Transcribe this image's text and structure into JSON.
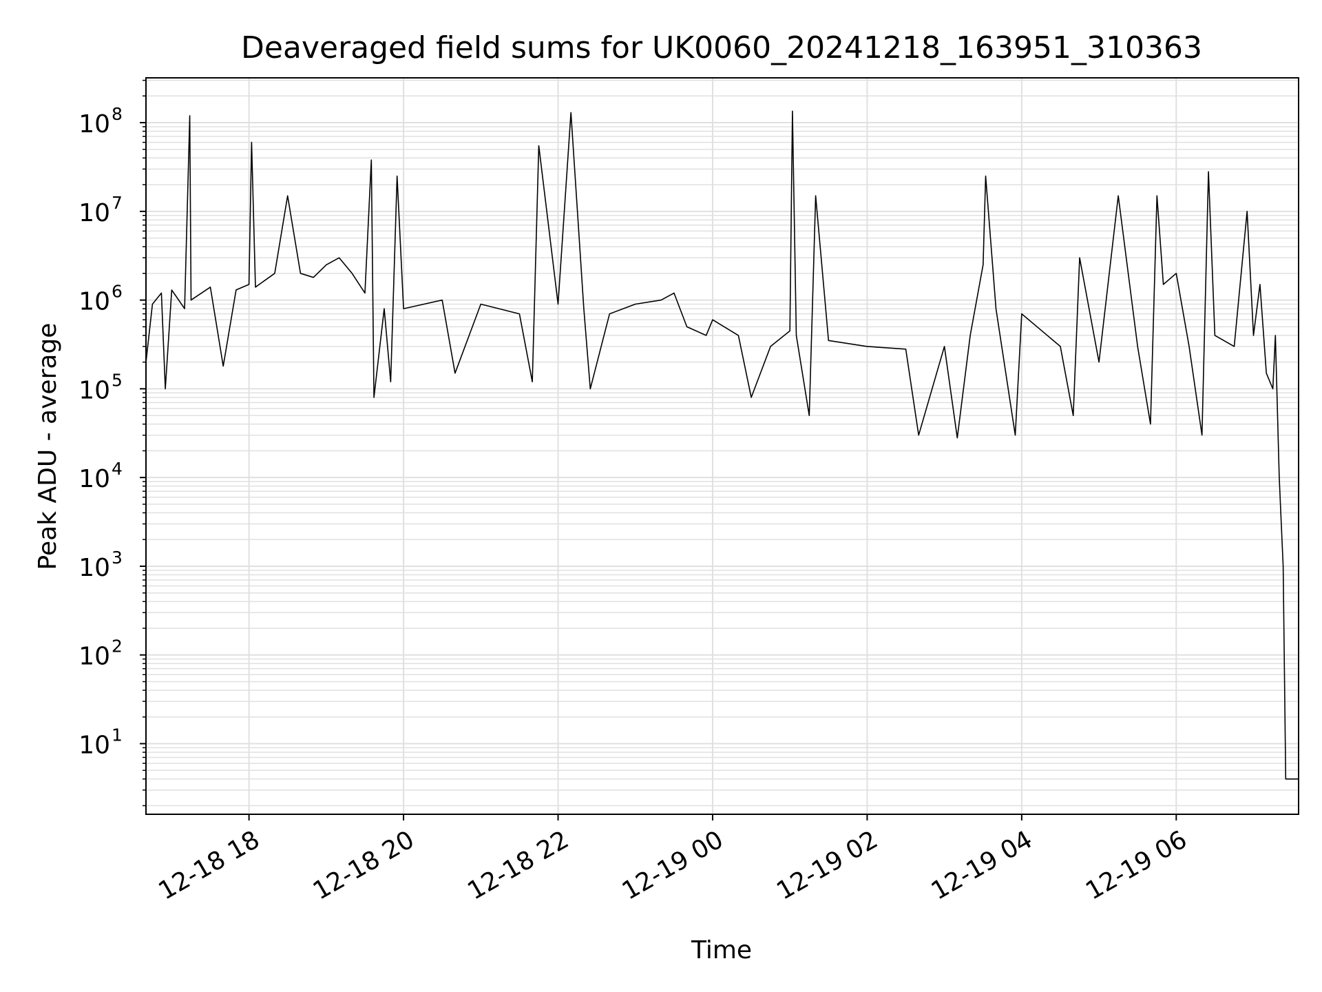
{
  "chart_data": {
    "type": "line",
    "title": "Deaveraged field sums for UK0060_20241218_163951_310363",
    "xlabel": "Time",
    "ylabel": "Peak ADU - average",
    "yscale": "log",
    "ylim": [
      1.6,
      320000000
    ],
    "xlim": [
      "2024-12-18 16:40",
      "2024-12-19 07:35"
    ],
    "x_ticks": [
      {
        "value": "2024-12-18 18:00",
        "label": "12-18 18"
      },
      {
        "value": "2024-12-18 20:00",
        "label": "12-18 20"
      },
      {
        "value": "2024-12-18 22:00",
        "label": "12-18 22"
      },
      {
        "value": "2024-12-19 00:00",
        "label": "12-19 00"
      },
      {
        "value": "2024-12-19 02:00",
        "label": "12-19 02"
      },
      {
        "value": "2024-12-19 04:00",
        "label": "12-19 04"
      },
      {
        "value": "2024-12-19 06:00",
        "label": "12-19 06"
      }
    ],
    "y_ticks": [
      {
        "value": 10,
        "base": "10",
        "exp": "1"
      },
      {
        "value": 100,
        "base": "10",
        "exp": "2"
      },
      {
        "value": 1000,
        "base": "10",
        "exp": "3"
      },
      {
        "value": 10000,
        "base": "10",
        "exp": "4"
      },
      {
        "value": 100000,
        "base": "10",
        "exp": "5"
      },
      {
        "value": 1000000,
        "base": "10",
        "exp": "6"
      },
      {
        "value": 10000000,
        "base": "10",
        "exp": "7"
      },
      {
        "value": 100000000,
        "base": "10",
        "exp": "8"
      }
    ],
    "grid": true,
    "line_color": "#000000",
    "grid_color": "#e0e0e0",
    "series": [
      {
        "points": [
          [
            "2024-12-18 16:40",
            200000
          ],
          [
            "2024-12-18 16:45",
            900000
          ],
          [
            "2024-12-18 16:52",
            1200000
          ],
          [
            "2024-12-18 16:55",
            100000
          ],
          [
            "2024-12-18 17:00",
            1300000
          ],
          [
            "2024-12-18 17:10",
            800000
          ],
          [
            "2024-12-18 17:14",
            120000000
          ],
          [
            "2024-12-18 17:15",
            1000000
          ],
          [
            "2024-12-18 17:30",
            1400000
          ],
          [
            "2024-12-18 17:40",
            180000
          ],
          [
            "2024-12-18 17:50",
            1300000
          ],
          [
            "2024-12-18 18:00",
            1500000
          ],
          [
            "2024-12-18 18:02",
            60000000
          ],
          [
            "2024-12-18 18:05",
            1400000
          ],
          [
            "2024-12-18 18:20",
            2000000
          ],
          [
            "2024-12-18 18:30",
            15000000
          ],
          [
            "2024-12-18 18:40",
            2000000
          ],
          [
            "2024-12-18 18:50",
            1800000
          ],
          [
            "2024-12-18 19:00",
            2500000
          ],
          [
            "2024-12-18 19:10",
            3000000
          ],
          [
            "2024-12-18 19:20",
            2000000
          ],
          [
            "2024-12-18 19:30",
            1200000
          ],
          [
            "2024-12-18 19:35",
            38000000
          ],
          [
            "2024-12-18 19:37",
            80000
          ],
          [
            "2024-12-18 19:45",
            800000
          ],
          [
            "2024-12-18 19:50",
            120000
          ],
          [
            "2024-12-18 19:55",
            25000000
          ],
          [
            "2024-12-18 20:00",
            800000
          ],
          [
            "2024-12-18 20:30",
            1000000
          ],
          [
            "2024-12-18 20:40",
            150000
          ],
          [
            "2024-12-18 21:00",
            900000
          ],
          [
            "2024-12-18 21:30",
            700000
          ],
          [
            "2024-12-18 21:40",
            120000
          ],
          [
            "2024-12-18 21:45",
            55000000
          ],
          [
            "2024-12-18 22:00",
            900000
          ],
          [
            "2024-12-18 22:10",
            130000000
          ],
          [
            "2024-12-18 22:20",
            800000
          ],
          [
            "2024-12-18 22:25",
            100000
          ],
          [
            "2024-12-18 22:40",
            700000
          ],
          [
            "2024-12-18 23:00",
            900000
          ],
          [
            "2024-12-18 23:20",
            1000000
          ],
          [
            "2024-12-18 23:30",
            1200000
          ],
          [
            "2024-12-18 23:40",
            500000
          ],
          [
            "2024-12-18 23:55",
            400000
          ],
          [
            "2024-12-19 00:00",
            600000
          ],
          [
            "2024-12-19 00:20",
            400000
          ],
          [
            "2024-12-19 00:30",
            80000
          ],
          [
            "2024-12-19 00:45",
            300000
          ],
          [
            "2024-12-19 01:00",
            450000
          ],
          [
            "2024-12-19 01:02",
            135000000
          ],
          [
            "2024-12-19 01:05",
            400000
          ],
          [
            "2024-12-19 01:15",
            50000
          ],
          [
            "2024-12-19 01:20",
            15000000
          ],
          [
            "2024-12-19 01:30",
            350000
          ],
          [
            "2024-12-19 02:00",
            300000
          ],
          [
            "2024-12-19 02:30",
            280000
          ],
          [
            "2024-12-19 02:40",
            30000
          ],
          [
            "2024-12-19 03:00",
            300000
          ],
          [
            "2024-12-19 03:10",
            28000
          ],
          [
            "2024-12-19 03:20",
            400000
          ],
          [
            "2024-12-19 03:30",
            2500000
          ],
          [
            "2024-12-19 03:32",
            25000000
          ],
          [
            "2024-12-19 03:40",
            800000
          ],
          [
            "2024-12-19 03:55",
            30000
          ],
          [
            "2024-12-19 04:00",
            700000
          ],
          [
            "2024-12-19 04:30",
            300000
          ],
          [
            "2024-12-19 04:40",
            50000
          ],
          [
            "2024-12-19 04:45",
            3000000
          ],
          [
            "2024-12-19 05:00",
            200000
          ],
          [
            "2024-12-19 05:15",
            15000000
          ],
          [
            "2024-12-19 05:30",
            300000
          ],
          [
            "2024-12-19 05:40",
            40000
          ],
          [
            "2024-12-19 05:45",
            15000000
          ],
          [
            "2024-12-19 05:50",
            1500000
          ],
          [
            "2024-12-19 06:00",
            2000000
          ],
          [
            "2024-12-19 06:10",
            300000
          ],
          [
            "2024-12-19 06:20",
            30000
          ],
          [
            "2024-12-19 06:25",
            28000000
          ],
          [
            "2024-12-19 06:30",
            400000
          ],
          [
            "2024-12-19 06:45",
            300000
          ],
          [
            "2024-12-19 06:55",
            10000000
          ],
          [
            "2024-12-19 07:00",
            400000
          ],
          [
            "2024-12-19 07:05",
            1500000
          ],
          [
            "2024-12-19 07:10",
            150000
          ],
          [
            "2024-12-19 07:15",
            100000
          ],
          [
            "2024-12-19 07:17",
            400000
          ],
          [
            "2024-12-19 07:20",
            10000
          ],
          [
            "2024-12-19 07:23",
            1000
          ],
          [
            "2024-12-19 07:25",
            4
          ],
          [
            "2024-12-19 07:35",
            4
          ]
        ]
      }
    ]
  }
}
